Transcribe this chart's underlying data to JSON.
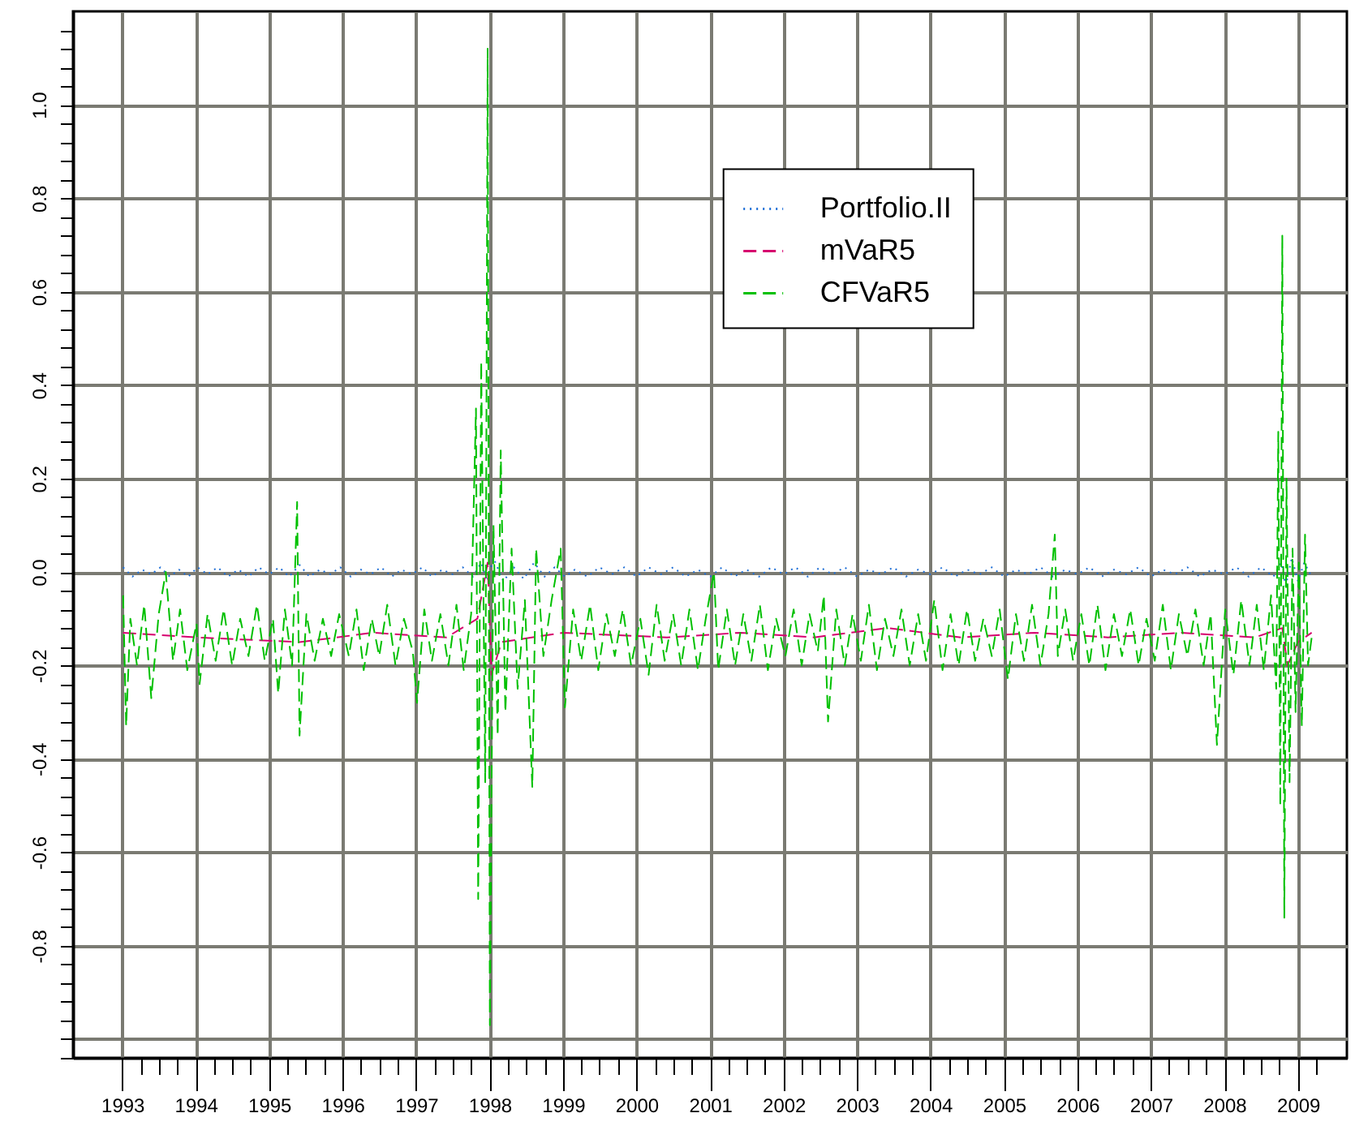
{
  "chart_data": {
    "type": "line",
    "xlim": [
      "1992-05",
      "2009-09"
    ],
    "ylim": [
      -1.04,
      1.2
    ],
    "xticks": [
      "1993",
      {
        "value": "1993-04",
        "label": null
      },
      {
        "value": "1993-07",
        "label": null
      },
      {
        "value": "1993-10",
        "label": null
      },
      "1994",
      {
        "value": "1994-04",
        "label": null
      },
      {
        "value": "1994-07",
        "label": null
      },
      {
        "value": "1994-10",
        "label": null
      },
      "1995",
      {
        "value": "1995-04",
        "label": null
      },
      {
        "value": "1995-07",
        "label": null
      },
      {
        "value": "1995-10",
        "label": null
      },
      "1996",
      {
        "value": "1996-04",
        "label": null
      },
      {
        "value": "1996-07",
        "label": null
      },
      {
        "value": "1996-10",
        "label": null
      },
      "1997",
      {
        "value": "1997-04",
        "label": null
      },
      {
        "value": "1997-07",
        "label": null
      },
      {
        "value": "1997-10",
        "label": null
      },
      "1998",
      {
        "value": "1998-04",
        "label": null
      },
      {
        "value": "1998-07",
        "label": null
      },
      {
        "value": "1998-10",
        "label": null
      },
      "1999",
      {
        "value": "1999-04",
        "label": null
      },
      {
        "value": "1999-07",
        "label": null
      },
      {
        "value": "1999-10",
        "label": null
      },
      "2000",
      {
        "value": "2000-04",
        "label": null
      },
      {
        "value": "2000-07",
        "label": null
      },
      {
        "value": "2000-10",
        "label": null
      },
      "2001",
      {
        "value": "2001-04",
        "label": null
      },
      {
        "value": "2001-07",
        "label": null
      },
      {
        "value": "2001-10",
        "label": null
      },
      "2002",
      {
        "value": "2002-04",
        "label": null
      },
      {
        "value": "2002-07",
        "label": null
      },
      {
        "value": "2002-10",
        "label": null
      },
      "2003",
      {
        "value": "2003-04",
        "label": null
      },
      {
        "value": "2003-07",
        "label": null
      },
      {
        "value": "2003-10",
        "label": null
      },
      "2004",
      {
        "value": "2004-04",
        "label": null
      },
      {
        "value": "2004-07",
        "label": null
      },
      {
        "value": "2004-10",
        "label": null
      },
      "2005",
      {
        "value": "2005-04",
        "label": null
      },
      {
        "value": "2005-07",
        "label": null
      },
      {
        "value": "2005-10",
        "label": null
      },
      "2006",
      {
        "value": "2006-04",
        "label": null
      },
      {
        "value": "2006-07",
        "label": null
      },
      {
        "value": "2006-10",
        "label": null
      },
      "2007",
      {
        "value": "2007-04",
        "label": null
      },
      {
        "value": "2007-07",
        "label": null
      },
      {
        "value": "2007-10",
        "label": null
      },
      "2008",
      {
        "value": "2008-04",
        "label": null
      },
      {
        "value": "2008-07",
        "label": null
      },
      {
        "value": "2008-10",
        "label": null
      },
      "2009",
      {
        "value": "2009-04",
        "label": null
      }
    ],
    "yticks": [
      {
        "value": -1.04,
        "label": null
      },
      {
        "value": -1.0,
        "label": null
      },
      {
        "value": -0.96,
        "label": null
      },
      {
        "value": -0.92,
        "label": null
      },
      {
        "value": -0.88,
        "label": null
      },
      {
        "value": -0.84,
        "label": null
      },
      {
        "value": -0.8,
        "label": "-0.8"
      },
      {
        "value": -0.76,
        "label": null
      },
      {
        "value": -0.72,
        "label": null
      },
      {
        "value": -0.68,
        "label": null
      },
      {
        "value": -0.64,
        "label": null
      },
      {
        "value": -0.6,
        "label": "-0.6"
      },
      {
        "value": -0.56,
        "label": null
      },
      {
        "value": -0.52,
        "label": null
      },
      {
        "value": -0.48,
        "label": null
      },
      {
        "value": -0.44,
        "label": null
      },
      {
        "value": -0.4,
        "label": "-0.4"
      },
      {
        "value": -0.36,
        "label": null
      },
      {
        "value": -0.32,
        "label": null
      },
      {
        "value": -0.28,
        "label": null
      },
      {
        "value": -0.24,
        "label": null
      },
      {
        "value": -0.2,
        "label": "-0.2"
      },
      {
        "value": -0.16,
        "label": null
      },
      {
        "value": -0.12,
        "label": null
      },
      {
        "value": -0.08,
        "label": null
      },
      {
        "value": -0.04,
        "label": null
      },
      {
        "value": 0,
        "label": "0.0"
      },
      {
        "value": 0.04,
        "label": null
      },
      {
        "value": 0.08,
        "label": null
      },
      {
        "value": 0.12,
        "label": null
      },
      {
        "value": 0.16,
        "label": null
      },
      {
        "value": 0.2,
        "label": "0.2"
      },
      {
        "value": 0.24,
        "label": null
      },
      {
        "value": 0.28,
        "label": null
      },
      {
        "value": 0.32,
        "label": null
      },
      {
        "value": 0.36,
        "label": null
      },
      {
        "value": 0.4,
        "label": "0.4"
      },
      {
        "value": 0.44,
        "label": null
      },
      {
        "value": 0.48,
        "label": null
      },
      {
        "value": 0.52,
        "label": null
      },
      {
        "value": 0.56,
        "label": null
      },
      {
        "value": 0.6,
        "label": "0.6"
      },
      {
        "value": 0.64,
        "label": null
      },
      {
        "value": 0.68,
        "label": null
      },
      {
        "value": 0.72,
        "label": null
      },
      {
        "value": 0.76,
        "label": null
      },
      {
        "value": 0.8,
        "label": "0.8"
      },
      {
        "value": 0.84,
        "label": null
      },
      {
        "value": 0.88,
        "label": null
      },
      {
        "value": 0.92,
        "label": null
      },
      {
        "value": 0.96,
        "label": null
      },
      {
        "value": 1,
        "label": "1.0"
      },
      {
        "value": 1.04,
        "label": null
      },
      {
        "value": 1.08,
        "label": null
      },
      {
        "value": 1.12,
        "label": null
      },
      {
        "value": 1.16,
        "label": null
      }
    ],
    "grid": true,
    "legend": "top right",
    "series": [
      {
        "name": "Portfolio.II",
        "color": "#1f6fd6",
        "line_style": "dotted",
        "x": [
          "1993-01-05",
          "1993-02-20",
          "1993-04-10",
          "1993-05-25",
          "1993-07-10",
          "1993-08-25",
          "1993-10-10",
          "1993-11-25",
          "1994-01-10",
          "1994-03-01",
          "1994-04-20",
          "1994-06-10",
          "1994-08-01",
          "1994-09-20",
          "1994-11-10",
          "1995-01-01",
          "1995-02-20",
          "1995-04-10",
          "1995-06-01",
          "1995-07-20",
          "1995-09-10",
          "1995-11-01",
          "1995-12-20",
          "1996-02-10",
          "1996-04-01",
          "1996-05-20",
          "1996-07-10",
          "1996-09-01",
          "1996-10-20",
          "1996-12-10",
          "1997-02-01",
          "1997-03-20",
          "1997-05-10",
          "1997-07-01",
          "1997-08-20",
          "1997-10-10",
          "1997-11-20",
          "1997-12-20",
          "1998-01-20",
          "1998-03-10",
          "1998-05-01",
          "1998-06-20",
          "1998-08-10",
          "1998-10-01",
          "1998-11-20",
          "1999-01-10",
          "1999-03-01",
          "1999-05-01",
          "1999-07-01",
          "1999-09-01",
          "1999-11-01",
          "2000-01-01",
          "2000-03-01",
          "2000-05-01",
          "2000-07-01",
          "2000-09-01",
          "2000-11-01",
          "2001-01-01",
          "2001-03-01",
          "2001-05-01",
          "2001-07-01",
          "2001-09-01",
          "2001-11-01",
          "2002-01-01",
          "2002-03-01",
          "2002-05-01",
          "2002-07-01",
          "2002-09-01",
          "2002-11-01",
          "2003-01-01",
          "2003-03-01",
          "2003-05-01",
          "2003-07-01",
          "2003-09-01",
          "2003-11-01",
          "2004-01-01",
          "2004-03-01",
          "2004-05-01",
          "2004-07-01",
          "2004-09-01",
          "2004-11-01",
          "2005-01-01",
          "2005-03-01",
          "2005-05-01",
          "2005-07-01",
          "2005-09-01",
          "2005-11-01",
          "2006-01-01",
          "2006-03-01",
          "2006-05-01",
          "2006-07-01",
          "2006-09-01",
          "2006-11-01",
          "2007-01-01",
          "2007-03-01",
          "2007-05-01",
          "2007-07-01",
          "2007-09-01",
          "2007-11-01",
          "2008-01-01",
          "2008-03-01",
          "2008-05-01",
          "2008-07-01",
          "2008-09-01",
          "2008-10-10",
          "2008-11-01",
          "2008-12-01",
          "2009-01-01",
          "2009-02-01",
          "2009-03-10"
        ],
        "values": [
          0.01,
          -0.01,
          0.005,
          -0.005,
          0.01,
          -0.01,
          0.005,
          -0.01,
          0.01,
          -0.005,
          0.01,
          -0.01,
          0.005,
          -0.01,
          0.01,
          -0.005,
          0.01,
          -0.01,
          0.015,
          -0.01,
          0.005,
          -0.005,
          0.01,
          -0.01,
          0.005,
          -0.005,
          0.01,
          -0.01,
          0.005,
          -0.005,
          0.01,
          -0.01,
          0.005,
          -0.005,
          0.01,
          -0.01,
          0.02,
          -0.02,
          0.03,
          -0.02,
          0.01,
          -0.015,
          0.02,
          -0.01,
          0.01,
          -0.01,
          0.005,
          -0.01,
          0.01,
          -0.005,
          0.01,
          -0.01,
          0.01,
          -0.005,
          0.01,
          -0.01,
          0.005,
          -0.01,
          0.01,
          -0.01,
          0.005,
          -0.01,
          0.01,
          -0.005,
          0.01,
          -0.01,
          0.01,
          -0.005,
          0.01,
          -0.01,
          0.005,
          -0.005,
          0.01,
          -0.01,
          0.005,
          -0.005,
          0.01,
          -0.01,
          0.005,
          -0.005,
          0.01,
          -0.01,
          0.005,
          -0.005,
          0.01,
          -0.01,
          0.005,
          -0.005,
          0.01,
          -0.01,
          0.005,
          -0.005,
          0.01,
          -0.01,
          0.005,
          -0.005,
          0.01,
          -0.01,
          0.005,
          -0.005,
          0.01,
          -0.01,
          0.01,
          -0.01,
          0.02,
          -0.03,
          0.03,
          -0.02,
          0.02,
          -0.01
        ]
      },
      {
        "name": "mVaR5",
        "color": "#d6006e",
        "line_style": "dashed",
        "x": [
          "1993-01-05",
          "1994-01-01",
          "1995-06-01",
          "1996-06-01",
          "1997-06-01",
          "1997-11-01",
          "1997-12-22",
          "1998-01-10",
          "1998-03-01",
          "1999-01-01",
          "2000-06-01",
          "2001-06-01",
          "2002-06-01",
          "2003-06-01",
          "2004-06-01",
          "2005-06-01",
          "2006-06-01",
          "2007-06-01",
          "2008-06-01",
          "2008-10-15",
          "2008-11-10",
          "2009-01-01",
          "2009-03-10"
        ],
        "values": [
          -0.13,
          -0.14,
          -0.15,
          -0.13,
          -0.14,
          -0.1,
          0.02,
          -0.22,
          -0.15,
          -0.13,
          -0.14,
          -0.13,
          -0.14,
          -0.12,
          -0.14,
          -0.13,
          -0.14,
          -0.13,
          -0.14,
          -0.12,
          -0.2,
          -0.15,
          -0.13
        ]
      },
      {
        "name": "CFVaR5",
        "color": "#00c000",
        "line_style": "dashed",
        "x": [
          "1993-01-05",
          "1993-01-20",
          "1993-02-10",
          "1993-03-15",
          "1993-04-20",
          "1993-05-25",
          "1993-07-01",
          "1993-08-05",
          "1993-09-10",
          "1993-10-15",
          "1993-11-20",
          "1994-01-05",
          "1994-01-20",
          "1994-03-01",
          "1994-04-10",
          "1994-05-20",
          "1994-07-01",
          "1994-08-10",
          "1994-09-20",
          "1994-11-01",
          "1994-12-10",
          "1995-01-20",
          "1995-02-15",
          "1995-03-20",
          "1995-04-25",
          "1995-05-20",
          "1995-06-01",
          "1995-07-05",
          "1995-08-15",
          "1995-09-25",
          "1995-11-05",
          "1995-12-15",
          "1996-02-01",
          "1996-03-10",
          "1996-04-15",
          "1996-05-25",
          "1996-07-01",
          "1996-08-10",
          "1996-09-20",
          "1996-11-01",
          "1996-12-15",
          "1997-01-05",
          "1997-02-10",
          "1997-03-20",
          "1997-05-01",
          "1997-06-10",
          "1997-07-20",
          "1997-08-25",
          "1997-10-01",
          "1997-10-25",
          "1997-11-05",
          "1997-11-20",
          "1997-12-10",
          "1997-12-22",
          "1998-01-02",
          "1998-01-20",
          "1998-02-10",
          "1998-02-25",
          "1998-03-20",
          "1998-04-20",
          "1998-05-20",
          "1998-06-25",
          "1998-08-01",
          "1998-08-20",
          "1998-09-25",
          "1998-11-05",
          "1998-12-20",
          "1999-01-10",
          "1999-02-20",
          "1999-04-01",
          "1999-05-15",
          "1999-06-25",
          "1999-08-05",
          "1999-09-15",
          "1999-10-25",
          "1999-12-05",
          "2000-01-20",
          "2000-03-01",
          "2000-04-10",
          "2000-05-20",
          "2000-07-01",
          "2000-08-10",
          "2000-09-20",
          "2000-11-01",
          "2000-12-10",
          "2001-01-20",
          "2001-02-10",
          "2001-03-25",
          "2001-05-05",
          "2001-06-15",
          "2001-07-25",
          "2001-09-05",
          "2001-10-15",
          "2001-11-25",
          "2002-01-10",
          "2002-02-20",
          "2002-04-01",
          "2002-05-10",
          "2002-06-20",
          "2002-07-20",
          "2002-08-10",
          "2002-09-20",
          "2002-11-01",
          "2002-12-10",
          "2003-01-20",
          "2003-03-01",
          "2003-04-10",
          "2003-05-20",
          "2003-07-01",
          "2003-08-10",
          "2003-09-20",
          "2003-11-01",
          "2003-12-10",
          "2004-01-20",
          "2004-03-01",
          "2004-04-10",
          "2004-05-20",
          "2004-07-01",
          "2004-08-10",
          "2004-09-20",
          "2004-11-01",
          "2004-12-10",
          "2005-01-20",
          "2005-03-01",
          "2005-04-10",
          "2005-05-20",
          "2005-07-01",
          "2005-08-10",
          "2005-09-10",
          "2005-09-25",
          "2005-11-01",
          "2005-12-10",
          "2006-01-20",
          "2006-03-01",
          "2006-04-10",
          "2006-05-20",
          "2006-07-01",
          "2006-08-10",
          "2006-09-20",
          "2006-11-01",
          "2006-12-10",
          "2007-01-20",
          "2007-03-01",
          "2007-04-10",
          "2007-05-20",
          "2007-07-01",
          "2007-08-10",
          "2007-09-20",
          "2007-10-25",
          "2007-11-25",
          "2008-01-05",
          "2008-02-15",
          "2008-03-25",
          "2008-05-05",
          "2008-06-10",
          "2008-07-15",
          "2008-08-20",
          "2008-09-15",
          "2008-09-25",
          "2008-10-05",
          "2008-10-15",
          "2008-10-25",
          "2008-11-05",
          "2008-11-20",
          "2008-12-05",
          "2008-12-20",
          "2009-01-05",
          "2009-01-20",
          "2009-02-05",
          "2009-02-20",
          "2009-03-10"
        ],
        "values": [
          -0.05,
          -0.33,
          -0.1,
          -0.2,
          -0.07,
          -0.27,
          -0.09,
          0,
          -0.19,
          -0.08,
          -0.21,
          -0.11,
          -0.24,
          -0.09,
          -0.19,
          -0.08,
          -0.2,
          -0.1,
          -0.18,
          -0.07,
          -0.19,
          -0.1,
          -0.26,
          -0.08,
          -0.2,
          0.15,
          -0.35,
          -0.09,
          -0.19,
          -0.1,
          -0.18,
          -0.09,
          -0.18,
          -0.08,
          -0.21,
          -0.1,
          -0.18,
          -0.07,
          -0.2,
          -0.1,
          -0.17,
          -0.28,
          -0.08,
          -0.19,
          -0.09,
          -0.2,
          -0.07,
          -0.21,
          -0.09,
          0.35,
          -0.7,
          0.45,
          -0.45,
          1.12,
          -0.97,
          0.1,
          -0.35,
          0.26,
          -0.3,
          0.05,
          -0.25,
          -0.06,
          -0.46,
          0.05,
          -0.18,
          -0.06,
          0.05,
          -0.29,
          -0.08,
          -0.19,
          -0.07,
          -0.21,
          -0.09,
          -0.18,
          -0.08,
          -0.2,
          -0.1,
          -0.22,
          -0.07,
          -0.19,
          -0.09,
          -0.2,
          -0.08,
          -0.21,
          -0.1,
          0,
          -0.21,
          -0.08,
          -0.2,
          -0.09,
          -0.19,
          -0.07,
          -0.21,
          -0.1,
          -0.18,
          -0.08,
          -0.2,
          -0.09,
          -0.17,
          -0.05,
          -0.32,
          -0.08,
          -0.2,
          -0.09,
          -0.19,
          -0.07,
          -0.21,
          -0.1,
          -0.18,
          -0.08,
          -0.2,
          -0.09,
          -0.19,
          -0.06,
          -0.21,
          -0.09,
          -0.2,
          -0.08,
          -0.19,
          -0.1,
          -0.18,
          -0.08,
          -0.23,
          -0.09,
          -0.19,
          -0.07,
          -0.2,
          -0.09,
          0.08,
          -0.18,
          -0.08,
          -0.19,
          -0.09,
          -0.2,
          -0.07,
          -0.21,
          -0.09,
          -0.18,
          -0.08,
          -0.2,
          -0.1,
          -0.19,
          -0.07,
          -0.21,
          -0.09,
          -0.18,
          -0.08,
          -0.2,
          -0.09,
          -0.37,
          -0.08,
          -0.22,
          -0.06,
          -0.2,
          -0.07,
          -0.21,
          -0.05,
          -0.25,
          0.3,
          -0.5,
          0.72,
          -0.74,
          0.2,
          -0.45,
          0.05,
          -0.3,
          0.02,
          -0.33,
          0.08,
          -0.2,
          -0.14
        ]
      }
    ]
  }
}
